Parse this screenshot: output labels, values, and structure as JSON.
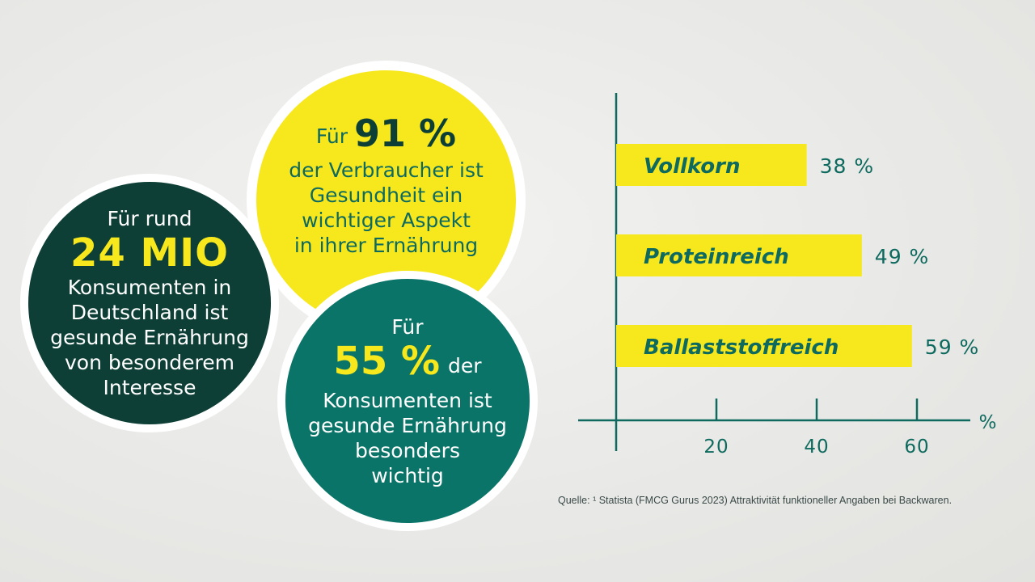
{
  "circles": {
    "yellow": {
      "prefix": "Für",
      "big": "91 %",
      "lines": [
        "der Verbraucher ist",
        "Gesundheit ein",
        "wichtiger Aspekt",
        "in ihrer Ernährung"
      ]
    },
    "dark": {
      "prefix": "Für rund",
      "big": "24 MIO",
      "lines": [
        "Konsumenten in",
        "Deutschland ist",
        "gesunde Ernährung",
        "von besonderem",
        "Interesse"
      ]
    },
    "teal": {
      "prefix": "Für",
      "big": "55 %",
      "suffix": "der",
      "lines": [
        "Konsumenten ist",
        "gesunde Ernährung",
        "besonders",
        "wichtig"
      ]
    }
  },
  "chart_data": {
    "type": "bar",
    "orientation": "horizontal",
    "categories": [
      "Vollkorn",
      "Proteinreich",
      "Ballaststoffreich"
    ],
    "values": [
      38,
      49,
      59
    ],
    "value_labels": [
      "38 %",
      "49 %",
      "59 %"
    ],
    "xticks": [
      20,
      40,
      60
    ],
    "xtick_labels": [
      "20",
      "40",
      "60"
    ],
    "xlabel": "%",
    "xlim": [
      0,
      70
    ]
  },
  "source": "Quelle: ¹ Statista (FMCG Gurus 2023) Attraktivität funktioneller Angaben bei Backwaren.",
  "colors": {
    "yellow": "#f7e81e",
    "dark_green": "#0d3f36",
    "teal": "#0b7468",
    "text_teal": "#0e6a5e"
  }
}
